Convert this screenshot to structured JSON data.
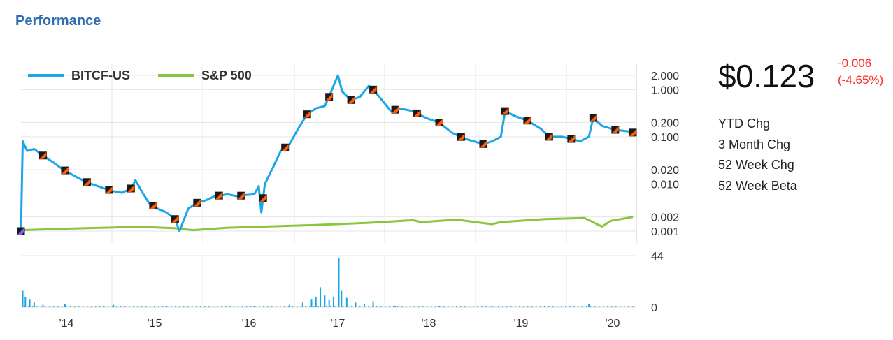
{
  "section_title": "Performance",
  "quote": {
    "price": "$0.123",
    "change": "-0.006",
    "change_pct": "(-4.65%)"
  },
  "stats": [
    "YTD Chg",
    "3 Month Chg",
    "52 Week Chg",
    "52 Week Beta"
  ],
  "colors": {
    "title": "#2e6db4",
    "btc": "#1ba6e8",
    "sp500": "#8bc53f",
    "negative": "#ff2b2b",
    "marker": "#ff5a00"
  },
  "chart_data": [
    {
      "type": "line",
      "yscale": "log",
      "y_ticks": [
        0.001,
        0.002,
        0.01,
        0.02,
        0.1,
        0.2,
        1,
        2
      ],
      "y_tick_labels": [
        "0.001",
        "0.002",
        "0.010",
        "0.020",
        "0.100",
        "0.200",
        "1.000",
        "2.000"
      ],
      "x_ticks": [
        2014,
        2015,
        2016,
        2017,
        2018,
        2019,
        2020
      ],
      "x_tick_labels": [
        "'14",
        "'15",
        "'16",
        "'17",
        "'18",
        "'19",
        "'20"
      ],
      "legend_position": "top-left",
      "grid": true,
      "series": [
        {
          "name": "BITCF-US",
          "color": "#1ba6e8",
          "points": [
            [
              2013.55,
              0.001
            ],
            [
              2013.57,
              0.08
            ],
            [
              2013.62,
              0.05
            ],
            [
              2013.7,
              0.055
            ],
            [
              2013.8,
              0.04
            ],
            [
              2013.9,
              0.03
            ],
            [
              2014.0,
              0.022
            ],
            [
              2014.15,
              0.015
            ],
            [
              2014.25,
              0.012
            ],
            [
              2014.35,
              0.01
            ],
            [
              2014.5,
              0.008
            ],
            [
              2014.6,
              0.007
            ],
            [
              2014.7,
              0.0065
            ],
            [
              2014.8,
              0.008
            ],
            [
              2014.85,
              0.012
            ],
            [
              2014.92,
              0.007
            ],
            [
              2015.0,
              0.004
            ],
            [
              2015.1,
              0.003
            ],
            [
              2015.2,
              0.0025
            ],
            [
              2015.3,
              0.0018
            ],
            [
              2015.35,
              0.001
            ],
            [
              2015.45,
              0.003
            ],
            [
              2015.55,
              0.004
            ],
            [
              2015.65,
              0.0045
            ],
            [
              2015.75,
              0.0055
            ],
            [
              2015.9,
              0.006
            ],
            [
              2016.0,
              0.0055
            ],
            [
              2016.1,
              0.0058
            ],
            [
              2016.2,
              0.006
            ],
            [
              2016.25,
              0.009
            ],
            [
              2016.28,
              0.0025
            ],
            [
              2016.32,
              0.01
            ],
            [
              2016.4,
              0.02
            ],
            [
              2016.5,
              0.05
            ],
            [
              2016.6,
              0.07
            ],
            [
              2016.7,
              0.15
            ],
            [
              2016.8,
              0.3
            ],
            [
              2016.9,
              0.4
            ],
            [
              2017.0,
              0.45
            ],
            [
              2017.05,
              0.7
            ],
            [
              2017.1,
              1.2
            ],
            [
              2017.15,
              2.0
            ],
            [
              2017.2,
              0.9
            ],
            [
              2017.3,
              0.6
            ],
            [
              2017.4,
              0.7
            ],
            [
              2017.5,
              1.2
            ],
            [
              2017.55,
              1.0
            ],
            [
              2017.65,
              0.6
            ],
            [
              2017.75,
              0.35
            ],
            [
              2017.85,
              0.4
            ],
            [
              2018.0,
              0.35
            ],
            [
              2018.15,
              0.25
            ],
            [
              2018.3,
              0.2
            ],
            [
              2018.45,
              0.12
            ],
            [
              2018.6,
              0.09
            ],
            [
              2018.8,
              0.07
            ],
            [
              2018.9,
              0.08
            ],
            [
              2019.0,
              0.1
            ],
            [
              2019.05,
              0.35
            ],
            [
              2019.15,
              0.28
            ],
            [
              2019.3,
              0.22
            ],
            [
              2019.45,
              0.15
            ],
            [
              2019.55,
              0.1
            ],
            [
              2019.7,
              0.1
            ],
            [
              2019.8,
              0.09
            ],
            [
              2019.9,
              0.08
            ],
            [
              2020.0,
              0.1
            ],
            [
              2020.05,
              0.25
            ],
            [
              2020.15,
              0.17
            ],
            [
              2020.3,
              0.14
            ],
            [
              2020.45,
              0.13
            ],
            [
              2020.5,
              0.123
            ]
          ]
        },
        {
          "name": "S&P 500",
          "color": "#8bc53f",
          "points": [
            [
              2013.55,
              0.00105
            ],
            [
              2014.0,
              0.00112
            ],
            [
              2014.5,
              0.00118
            ],
            [
              2014.9,
              0.00124
            ],
            [
              2015.3,
              0.00115
            ],
            [
              2015.5,
              0.00105
            ],
            [
              2015.9,
              0.00118
            ],
            [
              2016.3,
              0.00125
            ],
            [
              2016.9,
              0.00135
            ],
            [
              2017.5,
              0.0015
            ],
            [
              2018.0,
              0.0017
            ],
            [
              2018.1,
              0.00155
            ],
            [
              2018.5,
              0.00175
            ],
            [
              2018.9,
              0.0014
            ],
            [
              2019.0,
              0.00155
            ],
            [
              2019.5,
              0.0018
            ],
            [
              2019.95,
              0.0019
            ],
            [
              2020.15,
              0.00125
            ],
            [
              2020.25,
              0.00165
            ],
            [
              2020.5,
              0.002
            ]
          ]
        }
      ],
      "events_x": [
        2013.55,
        2013.8,
        2014.05,
        2014.3,
        2014.55,
        2014.8,
        2015.05,
        2015.3,
        2015.55,
        2015.8,
        2016.05,
        2016.3,
        2016.55,
        2016.8,
        2017.05,
        2017.3,
        2017.55,
        2017.8,
        2018.05,
        2018.3,
        2018.55,
        2018.8,
        2019.05,
        2019.3,
        2019.55,
        2019.8,
        2020.05,
        2020.3,
        2020.5
      ]
    },
    {
      "type": "bar",
      "name": "volume",
      "y_ticks": [
        0,
        44
      ],
      "y_tick_labels": [
        "0",
        "44"
      ],
      "bars": [
        [
          2013.57,
          14
        ],
        [
          2013.6,
          9
        ],
        [
          2013.65,
          7
        ],
        [
          2013.7,
          4
        ],
        [
          2013.8,
          2
        ],
        [
          2014.05,
          3
        ],
        [
          2014.6,
          2
        ],
        [
          2015.2,
          1
        ],
        [
          2016.2,
          1
        ],
        [
          2016.6,
          2
        ],
        [
          2016.75,
          4
        ],
        [
          2016.85,
          7
        ],
        [
          2016.9,
          9
        ],
        [
          2016.95,
          17
        ],
        [
          2017.0,
          10
        ],
        [
          2017.05,
          6
        ],
        [
          2017.1,
          9
        ],
        [
          2017.16,
          42
        ],
        [
          2017.19,
          14
        ],
        [
          2017.25,
          8
        ],
        [
          2017.35,
          4
        ],
        [
          2017.45,
          3
        ],
        [
          2017.55,
          5
        ],
        [
          2017.8,
          1
        ],
        [
          2018.3,
          1
        ],
        [
          2018.9,
          1
        ],
        [
          2019.5,
          1
        ],
        [
          2020.0,
          3
        ]
      ]
    }
  ]
}
